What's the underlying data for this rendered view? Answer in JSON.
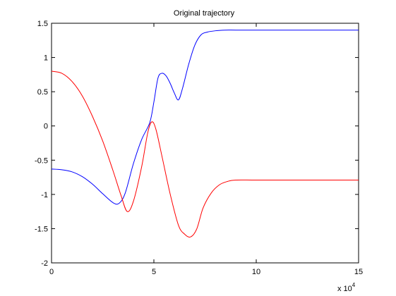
{
  "chart_data": {
    "type": "line",
    "title": "Original trajectory",
    "xlabel": "",
    "ylabel": "",
    "x_multiplier_label": "x 10",
    "x_multiplier_exponent": "4",
    "xlim": [
      0,
      15
    ],
    "ylim": [
      -2,
      1.5
    ],
    "grid": false,
    "xticks": [
      0,
      5,
      10,
      15
    ],
    "xtick_labels": [
      "0",
      "5",
      "10",
      "15"
    ],
    "yticks": [
      -2,
      -1.5,
      -1,
      -0.5,
      0,
      0.5,
      1,
      1.5
    ],
    "ytick_labels": [
      "-2",
      "-1.5",
      "-1",
      "-0.5",
      "0",
      "0.5",
      "1",
      "1.5"
    ],
    "series": [
      {
        "color": "#0000ff",
        "x": [
          0,
          0.5,
          1.0,
          1.5,
          2.0,
          2.5,
          3.0,
          3.3,
          3.6,
          4.0,
          4.4,
          4.8,
          5.0,
          5.2,
          5.4,
          5.6,
          5.8,
          6.0,
          6.2,
          6.4,
          6.7,
          7.0,
          7.3,
          7.6,
          8.0,
          8.5,
          9.0,
          10,
          12,
          15
        ],
        "y": [
          -0.63,
          -0.64,
          -0.67,
          -0.74,
          -0.85,
          -0.99,
          -1.12,
          -1.13,
          -0.98,
          -0.55,
          -0.2,
          0.05,
          0.35,
          0.7,
          0.77,
          0.73,
          0.62,
          0.48,
          0.38,
          0.55,
          0.9,
          1.18,
          1.33,
          1.37,
          1.39,
          1.4,
          1.4,
          1.4,
          1.4,
          1.4
        ]
      },
      {
        "color": "#ff0000",
        "x": [
          0,
          0.5,
          1.0,
          1.5,
          2.0,
          2.5,
          3.0,
          3.4,
          3.7,
          4.0,
          4.4,
          4.7,
          4.9,
          5.1,
          5.4,
          5.8,
          6.2,
          6.5,
          6.8,
          7.1,
          7.4,
          7.8,
          8.2,
          8.6,
          9.0,
          10,
          12,
          15
        ],
        "y": [
          0.8,
          0.77,
          0.65,
          0.44,
          0.14,
          -0.22,
          -0.65,
          -1.02,
          -1.25,
          -1.1,
          -0.6,
          -0.1,
          0.06,
          -0.05,
          -0.45,
          -1.0,
          -1.45,
          -1.58,
          -1.62,
          -1.5,
          -1.2,
          -0.98,
          -0.86,
          -0.81,
          -0.79,
          -0.79,
          -0.79,
          -0.79
        ]
      }
    ]
  }
}
